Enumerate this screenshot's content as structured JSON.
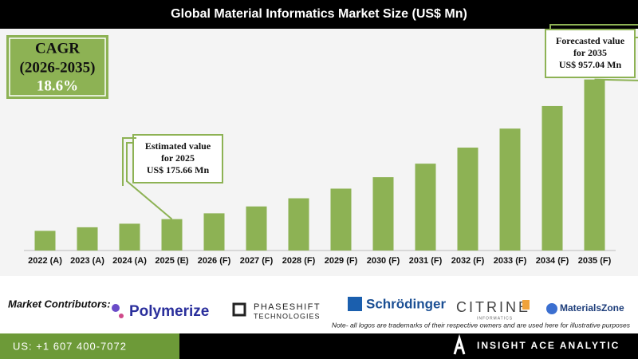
{
  "chart_data": {
    "type": "bar",
    "title": "Global Material Informatics Market Size (US$ Mn)",
    "categories": [
      "2022 (A)",
      "2023 (A)",
      "2024 (A)",
      "2025 (E)",
      "2026 (F)",
      "2027 (F)",
      "2028 (F)",
      "2029 (F)",
      "2030 (F)",
      "2031 (F)",
      "2032 (F)",
      "2033 (F)",
      "2034 (F)",
      "2035 (F)"
    ],
    "values": [
      110,
      130,
      150,
      175.66,
      208.1,
      246.6,
      292.2,
      346.2,
      410.2,
      486.0,
      575.8,
      682.2,
      808.3,
      957.04
    ],
    "color": "#8db254",
    "ylim": [
      0,
      1000
    ],
    "annotations": [
      {
        "category": 3,
        "lines": [
          "Estimated value",
          "for 2025",
          "US$ 175.66 Mn"
        ]
      },
      {
        "category": 13,
        "lines": [
          "Forecasted value",
          "for 2035",
          "US$ 957.04 Mn"
        ]
      }
    ]
  },
  "cagr": {
    "label": "CAGR",
    "period": "(2026-2035)",
    "value": "18.6%"
  },
  "contributors": {
    "label": "Market Contributors:",
    "logos": [
      "Polymerize",
      "PHASESHIFT",
      "TECHNOLOGIES",
      "Schrödinger",
      "CITRINE",
      "INFORMATICS",
      "MaterialsZone"
    ],
    "note": "Note- all logos are trademarks of their respective owners and are used here for illustrative purposes"
  },
  "footer": {
    "phone": "US: +1 607 400-7072",
    "brand": "INSIGHT ACE ANALYTIC"
  }
}
